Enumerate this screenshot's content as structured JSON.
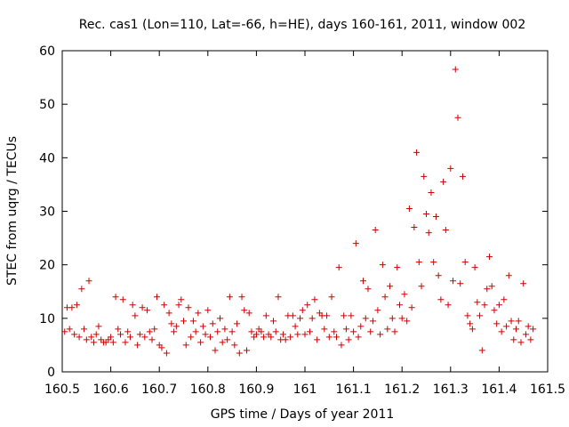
{
  "chart_data": {
    "type": "scatter",
    "title": "Rec. cas1 (Lon=110, Lat=-66, h=HE), days 160-161, 2011, window 002",
    "xlabel": "GPS time / Days of year 2011",
    "ylabel": "STEC from uqrg / TECUs",
    "xlim": [
      160.5,
      161.5
    ],
    "ylim": [
      0,
      60
    ],
    "xticks": [
      "160.5",
      "160.6",
      "160.7",
      "160.8",
      "160.9",
      "161",
      "161.1",
      "161.2",
      "161.3",
      "161.4",
      "161.5"
    ],
    "yticks": [
      "0",
      "10",
      "20",
      "30",
      "40",
      "50",
      "60"
    ],
    "marker": "+",
    "grid": false,
    "color": "#cc0000",
    "points": [
      [
        160.505,
        7.5
      ],
      [
        160.51,
        12.0
      ],
      [
        160.515,
        8.0
      ],
      [
        160.52,
        12.0
      ],
      [
        160.525,
        7.0
      ],
      [
        160.53,
        12.5
      ],
      [
        160.535,
        6.5
      ],
      [
        160.54,
        15.5
      ],
      [
        160.545,
        8.0
      ],
      [
        160.55,
        6.0
      ],
      [
        160.555,
        17.0
      ],
      [
        160.56,
        6.5
      ],
      [
        160.565,
        5.5
      ],
      [
        160.57,
        7.0
      ],
      [
        160.575,
        8.5
      ],
      [
        160.58,
        6.0
      ],
      [
        160.585,
        5.5
      ],
      [
        160.59,
        5.5
      ],
      [
        160.595,
        6.0
      ],
      [
        160.6,
        6.5
      ],
      [
        160.605,
        5.5
      ],
      [
        160.61,
        14.0
      ],
      [
        160.615,
        8.0
      ],
      [
        160.62,
        7.0
      ],
      [
        160.625,
        13.5
      ],
      [
        160.63,
        5.5
      ],
      [
        160.635,
        7.5
      ],
      [
        160.64,
        6.5
      ],
      [
        160.645,
        12.5
      ],
      [
        160.65,
        10.5
      ],
      [
        160.655,
        5.0
      ],
      [
        160.66,
        7.0
      ],
      [
        160.665,
        12.0
      ],
      [
        160.67,
        6.5
      ],
      [
        160.675,
        11.5
      ],
      [
        160.68,
        7.5
      ],
      [
        160.685,
        6.0
      ],
      [
        160.69,
        8.0
      ],
      [
        160.695,
        14.0
      ],
      [
        160.7,
        5.0
      ],
      [
        160.705,
        4.5
      ],
      [
        160.71,
        12.5
      ],
      [
        160.715,
        3.5
      ],
      [
        160.72,
        11.0
      ],
      [
        160.725,
        9.0
      ],
      [
        160.73,
        7.5
      ],
      [
        160.735,
        8.5
      ],
      [
        160.74,
        12.5
      ],
      [
        160.745,
        13.5
      ],
      [
        160.75,
        9.5
      ],
      [
        160.755,
        5.0
      ],
      [
        160.76,
        12.0
      ],
      [
        160.765,
        6.5
      ],
      [
        160.77,
        9.5
      ],
      [
        160.775,
        7.5
      ],
      [
        160.78,
        11.0
      ],
      [
        160.785,
        5.5
      ],
      [
        160.79,
        8.5
      ],
      [
        160.795,
        7.0
      ],
      [
        160.8,
        11.5
      ],
      [
        160.805,
        6.5
      ],
      [
        160.81,
        9.0
      ],
      [
        160.815,
        4.0
      ],
      [
        160.82,
        7.5
      ],
      [
        160.825,
        10.0
      ],
      [
        160.83,
        5.5
      ],
      [
        160.835,
        8.0
      ],
      [
        160.84,
        6.0
      ],
      [
        160.845,
        14.0
      ],
      [
        160.85,
        7.5
      ],
      [
        160.855,
        5.0
      ],
      [
        160.86,
        9.0
      ],
      [
        160.865,
        3.5
      ],
      [
        160.87,
        14.0
      ],
      [
        160.875,
        11.5
      ],
      [
        160.88,
        4.0
      ],
      [
        160.885,
        11.0
      ],
      [
        160.89,
        7.5
      ],
      [
        160.895,
        6.5
      ],
      [
        160.9,
        7.0
      ],
      [
        160.905,
        8.0
      ],
      [
        160.91,
        7.5
      ],
      [
        160.915,
        6.5
      ],
      [
        160.92,
        10.5
      ],
      [
        160.925,
        7.0
      ],
      [
        160.93,
        6.5
      ],
      [
        160.935,
        9.5
      ],
      [
        160.94,
        7.5
      ],
      [
        160.945,
        14.0
      ],
      [
        160.95,
        6.0
      ],
      [
        160.955,
        7.0
      ],
      [
        160.96,
        6.0
      ],
      [
        160.965,
        10.5
      ],
      [
        160.97,
        6.5
      ],
      [
        160.975,
        10.5
      ],
      [
        160.98,
        8.5
      ],
      [
        160.985,
        7.0
      ],
      [
        160.99,
        10.0
      ],
      [
        160.995,
        11.5
      ],
      [
        161.0,
        7.0
      ],
      [
        161.005,
        12.5
      ],
      [
        161.01,
        7.5
      ],
      [
        161.015,
        10.0
      ],
      [
        161.02,
        13.5
      ],
      [
        161.025,
        6.0
      ],
      [
        161.03,
        11.0
      ],
      [
        161.035,
        10.5
      ],
      [
        161.04,
        8.0
      ],
      [
        161.045,
        10.5
      ],
      [
        161.05,
        6.5
      ],
      [
        161.055,
        14.0
      ],
      [
        161.06,
        7.5
      ],
      [
        161.065,
        6.5
      ],
      [
        161.07,
        19.5
      ],
      [
        161.075,
        5.0
      ],
      [
        161.08,
        10.5
      ],
      [
        161.085,
        8.0
      ],
      [
        161.09,
        6.0
      ],
      [
        161.095,
        10.5
      ],
      [
        161.1,
        7.5
      ],
      [
        161.105,
        24.0
      ],
      [
        161.11,
        6.5
      ],
      [
        161.115,
        8.5
      ],
      [
        161.12,
        17.0
      ],
      [
        161.125,
        10.0
      ],
      [
        161.13,
        15.5
      ],
      [
        161.135,
        7.5
      ],
      [
        161.14,
        9.5
      ],
      [
        161.145,
        26.5
      ],
      [
        161.15,
        11.5
      ],
      [
        161.155,
        7.0
      ],
      [
        161.16,
        20.0
      ],
      [
        161.165,
        14.0
      ],
      [
        161.17,
        8.0
      ],
      [
        161.175,
        16.0
      ],
      [
        161.18,
        10.0
      ],
      [
        161.185,
        7.5
      ],
      [
        161.19,
        19.5
      ],
      [
        161.195,
        12.5
      ],
      [
        161.2,
        10.0
      ],
      [
        161.205,
        14.5
      ],
      [
        161.21,
        9.5
      ],
      [
        161.215,
        30.5
      ],
      [
        161.22,
        12.0
      ],
      [
        161.225,
        27.0
      ],
      [
        161.23,
        41.0
      ],
      [
        161.235,
        20.5
      ],
      [
        161.24,
        16.0
      ],
      [
        161.245,
        36.5
      ],
      [
        161.25,
        29.5
      ],
      [
        161.255,
        26.0
      ],
      [
        161.26,
        33.5
      ],
      [
        161.265,
        20.5
      ],
      [
        161.27,
        29.0
      ],
      [
        161.275,
        18.0
      ],
      [
        161.28,
        13.5
      ],
      [
        161.285,
        35.5
      ],
      [
        161.29,
        26.5
      ],
      [
        161.295,
        12.5
      ],
      [
        161.3,
        38.0
      ],
      [
        161.305,
        17.0
      ],
      [
        161.31,
        56.5
      ],
      [
        161.315,
        47.5
      ],
      [
        161.32,
        16.5
      ],
      [
        161.325,
        36.5
      ],
      [
        161.33,
        20.5
      ],
      [
        161.335,
        10.5
      ],
      [
        161.34,
        9.0
      ],
      [
        161.345,
        8.0
      ],
      [
        161.35,
        19.5
      ],
      [
        161.355,
        13.0
      ],
      [
        161.36,
        10.5
      ],
      [
        161.365,
        4.0
      ],
      [
        161.37,
        12.5
      ],
      [
        161.375,
        15.5
      ],
      [
        161.38,
        21.5
      ],
      [
        161.385,
        16.0
      ],
      [
        161.39,
        11.5
      ],
      [
        161.395,
        9.0
      ],
      [
        161.4,
        12.5
      ],
      [
        161.405,
        7.5
      ],
      [
        161.41,
        13.5
      ],
      [
        161.415,
        8.5
      ],
      [
        161.42,
        18.0
      ],
      [
        161.425,
        9.5
      ],
      [
        161.43,
        6.0
      ],
      [
        161.435,
        8.0
      ],
      [
        161.44,
        9.5
      ],
      [
        161.445,
        5.5
      ],
      [
        161.45,
        16.5
      ],
      [
        161.455,
        7.0
      ],
      [
        161.46,
        8.5
      ],
      [
        161.465,
        6.0
      ],
      [
        161.47,
        8.0
      ]
    ]
  }
}
